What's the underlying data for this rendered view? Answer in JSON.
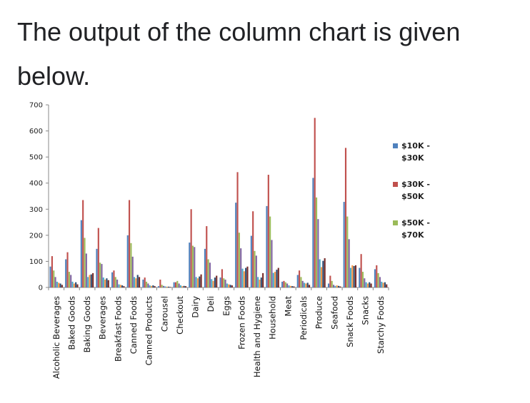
{
  "page": {
    "heading": "The output of the column chart is given below."
  },
  "chart_data": {
    "type": "bar",
    "ylim": [
      0,
      700
    ],
    "yticks": [
      0,
      100,
      200,
      300,
      400,
      500,
      600,
      700
    ],
    "grid": false,
    "legend_position": "right",
    "categories": [
      "Alcoholic Beverages",
      "Baked Goods",
      "Baking Goods",
      "Beverages",
      "Breakfast Foods",
      "Canned Foods",
      "Canned Products",
      "Carousel",
      "Checkout",
      "Dairy",
      "Deli",
      "Eggs",
      "Frozen Foods",
      "Health and Hygiene",
      "Household",
      "Meat",
      "Periodicals",
      "Produce",
      "Seafood",
      "Snack Foods",
      "Snacks",
      "Starchy Foods"
    ],
    "series": [
      {
        "name": "$10K - $30K",
        "color": "#4f81bd",
        "values": [
          80,
          108,
          258,
          148,
          58,
          200,
          30,
          5,
          20,
          172,
          148,
          38,
          325,
          198,
          312,
          22,
          48,
          420,
          15,
          328,
          75,
          70
        ]
      },
      {
        "name": "$30K - $50K",
        "color": "#c0504d",
        "values": [
          120,
          135,
          335,
          228,
          65,
          335,
          38,
          30,
          20,
          300,
          235,
          70,
          442,
          292,
          432,
          25,
          65,
          650,
          45,
          535,
          128,
          85
        ]
      },
      {
        "name": "$50K - $70K",
        "color": "#9bbb59",
        "values": [
          65,
          60,
          190,
          95,
          40,
          170,
          22,
          10,
          25,
          160,
          108,
          35,
          210,
          140,
          272,
          20,
          40,
          345,
          25,
          272,
          60,
          55
        ]
      },
      {
        "name": "",
        "color": "#8064a2",
        "values": [
          40,
          48,
          130,
          90,
          30,
          118,
          15,
          6,
          15,
          155,
          95,
          30,
          150,
          122,
          182,
          15,
          25,
          262,
          10,
          185,
          35,
          40
        ]
      },
      {
        "name": "",
        "color": "#4bacc6",
        "values": [
          22,
          22,
          40,
          38,
          12,
          40,
          8,
          4,
          8,
          40,
          32,
          15,
          72,
          40,
          56,
          8,
          18,
          108,
          6,
          75,
          20,
          22
        ]
      },
      {
        "name": "",
        "color": "#f79646",
        "values": [
          18,
          15,
          48,
          30,
          10,
          35,
          6,
          3,
          5,
          35,
          25,
          12,
          62,
          30,
          60,
          6,
          15,
          78,
          8,
          85,
          15,
          18
        ]
      },
      {
        "name": "",
        "color": "#2c4d75",
        "values": [
          15,
          20,
          50,
          35,
          8,
          48,
          8,
          3,
          6,
          42,
          38,
          10,
          75,
          38,
          68,
          5,
          18,
          102,
          6,
          82,
          20,
          20
        ]
      },
      {
        "name": "",
        "color": "#772c2a",
        "values": [
          10,
          12,
          55,
          28,
          5,
          40,
          5,
          2,
          5,
          50,
          45,
          8,
          80,
          55,
          75,
          4,
          10,
          112,
          4,
          85,
          15,
          12
        ]
      }
    ]
  }
}
